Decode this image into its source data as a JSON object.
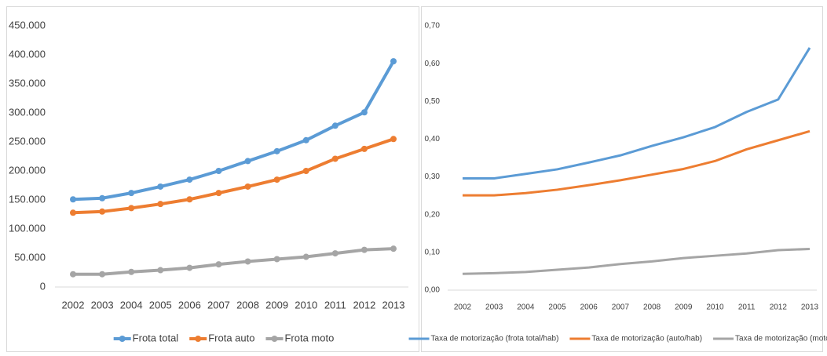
{
  "chart_data": [
    {
      "type": "line",
      "markers": true,
      "grid": false,
      "legend": "bottom",
      "categories": [
        "2002",
        "2003",
        "2004",
        "2005",
        "2006",
        "2007",
        "2008",
        "2009",
        "2010",
        "2011",
        "2012",
        "2013"
      ],
      "series": [
        {
          "name": "Frota total",
          "color": "#5b9bd5",
          "values": [
            151000,
            153000,
            162000,
            173000,
            185000,
            200000,
            217000,
            234000,
            253000,
            278000,
            301000,
            389000
          ]
        },
        {
          "name": "Frota auto",
          "color": "#ed7d31",
          "values": [
            128000,
            130000,
            136000,
            143000,
            151000,
            162000,
            173000,
            185000,
            200000,
            221000,
            238000,
            255000
          ]
        },
        {
          "name": "Frota moto",
          "color": "#a5a5a5",
          "values": [
            22000,
            22000,
            26000,
            29000,
            33000,
            39000,
            44000,
            48000,
            52000,
            58000,
            64000,
            66000
          ]
        }
      ],
      "ylim": [
        0,
        450000
      ],
      "yticks": [
        0,
        {
          "value": 50000,
          "label": "50.000"
        },
        {
          "value": 100000,
          "label": "100.000"
        },
        {
          "value": 150000,
          "label": "150.000"
        },
        {
          "value": 200000,
          "label": "200.000"
        },
        {
          "value": 250000,
          "label": "250.000"
        },
        {
          "value": 300000,
          "label": "300.000"
        },
        {
          "value": 350000,
          "label": "350.000"
        },
        {
          "value": 400000,
          "label": "400.000"
        },
        {
          "value": 450000,
          "label": "450.000"
        }
      ]
    },
    {
      "type": "line",
      "markers": false,
      "grid": false,
      "legend": "bottom",
      "categories": [
        "2002",
        "2003",
        "2004",
        "2005",
        "2006",
        "2007",
        "2008",
        "2009",
        "2010",
        "2011",
        "2012",
        "2013"
      ],
      "series": [
        {
          "name": "Taxa de motorização (frota total/hab)",
          "color": "#5b9bd5",
          "values": [
            0.296,
            0.296,
            0.308,
            0.32,
            0.338,
            0.357,
            0.382,
            0.405,
            0.432,
            0.472,
            0.505,
            0.642
          ]
        },
        {
          "name": "Taxa de motorização (auto/hab)",
          "color": "#ed7d31",
          "values": [
            0.251,
            0.251,
            0.257,
            0.266,
            0.278,
            0.291,
            0.306,
            0.321,
            0.342,
            0.373,
            0.397,
            0.421
          ]
        },
        {
          "name": "Taxa de motorização (moto/hab)",
          "color": "#a5a5a5",
          "values": [
            0.043,
            0.045,
            0.048,
            0.054,
            0.06,
            0.069,
            0.076,
            0.085,
            0.091,
            0.097,
            0.106,
            0.109
          ]
        }
      ],
      "ylim": [
        0,
        0.7
      ],
      "yticks": [
        {
          "value": 0,
          "label": "0,00"
        },
        {
          "value": 0.1,
          "label": "0,10"
        },
        {
          "value": 0.2,
          "label": "0,20"
        },
        {
          "value": 0.3,
          "label": "0,30"
        },
        {
          "value": 0.4,
          "label": "0,40"
        },
        {
          "value": 0.5,
          "label": "0,50"
        },
        {
          "value": 0.6,
          "label": "0,60"
        },
        {
          "value": 0.7,
          "label": "0,70"
        }
      ]
    }
  ]
}
